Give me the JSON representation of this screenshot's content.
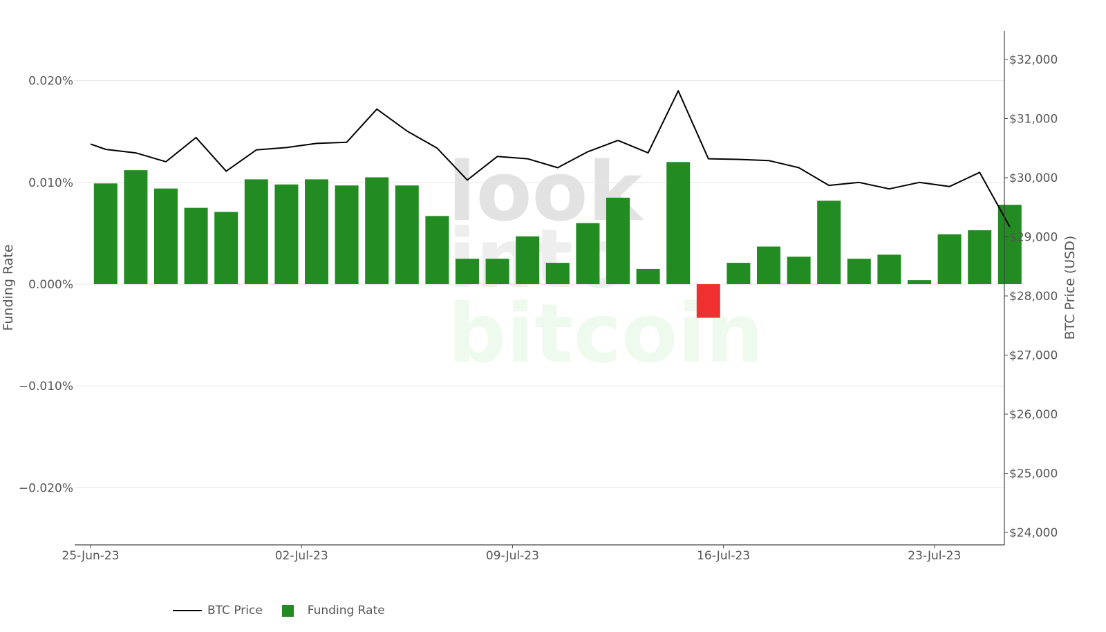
{
  "chart_data": {
    "type": "bar",
    "title": "",
    "watermark": [
      "look",
      "into",
      "bitcoin"
    ],
    "y_left": {
      "label": "Funding Rate",
      "range": [
        -0.025,
        0.025
      ],
      "ticks": [
        0.02,
        0.01,
        0.0,
        -0.01,
        -0.02
      ],
      "tick_labels": [
        "0.020%",
        "0.010%",
        "0.000%",
        "−0.010%",
        "−0.020%"
      ]
    },
    "y_right": {
      "label": "BTC Price (USD)",
      "range": [
        24000,
        32500
      ],
      "ticks": [
        32000,
        31000,
        30000,
        29000,
        28000,
        27000,
        26000,
        25000,
        24000
      ],
      "tick_labels": [
        "$32,000",
        "$31,000",
        "$30,000",
        "$29,000",
        "$28,000",
        "$27,000",
        "$26,000",
        "$25,000",
        "$24,000"
      ]
    },
    "x_tick_labels": [
      "25-Jun-23",
      "02-Jul-23",
      "09-Jul-23",
      "16-Jul-23",
      "23-Jul-23"
    ],
    "x_tick_days": [
      0,
      7,
      14,
      21,
      28
    ],
    "grid": true,
    "legend_position": "bottom-left",
    "series": [
      {
        "name": "Funding Rate",
        "kind": "bar",
        "color_positive": "#228b22",
        "color_negative": "#f03030",
        "days": [
          0.5,
          1.5,
          2.5,
          3.5,
          4.5,
          5.5,
          6.5,
          7.5,
          8.5,
          9.5,
          10.5,
          11.5,
          12.5,
          13.5,
          14.5,
          15.5,
          16.5,
          17.5,
          18.5,
          19.5,
          20.5,
          21.5,
          22.5,
          23.5,
          24.5,
          25.5,
          26.5,
          27.5,
          28.5,
          29.5,
          30.5
        ],
        "values": [
          0.0099,
          0.0112,
          0.0094,
          0.0075,
          0.0071,
          0.0103,
          0.0098,
          0.0103,
          0.0097,
          0.0105,
          0.0097,
          0.0067,
          0.0025,
          0.0025,
          0.0047,
          0.0021,
          0.006,
          0.0085,
          0.0015,
          0.012,
          -0.0033,
          0.0021,
          0.0037,
          0.0027,
          0.0082,
          0.0025,
          0.0029,
          0.0004,
          0.0049,
          0.0053,
          0.0078
        ]
      },
      {
        "name": "BTC Price",
        "kind": "line",
        "color": "#000000",
        "days": [
          0,
          0.5,
          1.5,
          2.5,
          3.5,
          4.5,
          5.5,
          6.5,
          7.5,
          8.5,
          9.5,
          10.5,
          11.5,
          12.5,
          13.5,
          14.5,
          15.5,
          16.5,
          17.5,
          18.5,
          19.5,
          20.5,
          21.5,
          22.5,
          23.5,
          24.5,
          25.5,
          26.5,
          27.5,
          28.5,
          29.5,
          30.5
        ],
        "values": [
          30570,
          30480,
          30420,
          30270,
          30680,
          30110,
          30470,
          30510,
          30580,
          30600,
          31160,
          30790,
          30500,
          29960,
          30360,
          30320,
          30170,
          30440,
          30630,
          30420,
          31470,
          30320,
          30310,
          30290,
          30170,
          29870,
          29920,
          29810,
          29920,
          29850,
          30090,
          29170
        ]
      }
    ]
  }
}
